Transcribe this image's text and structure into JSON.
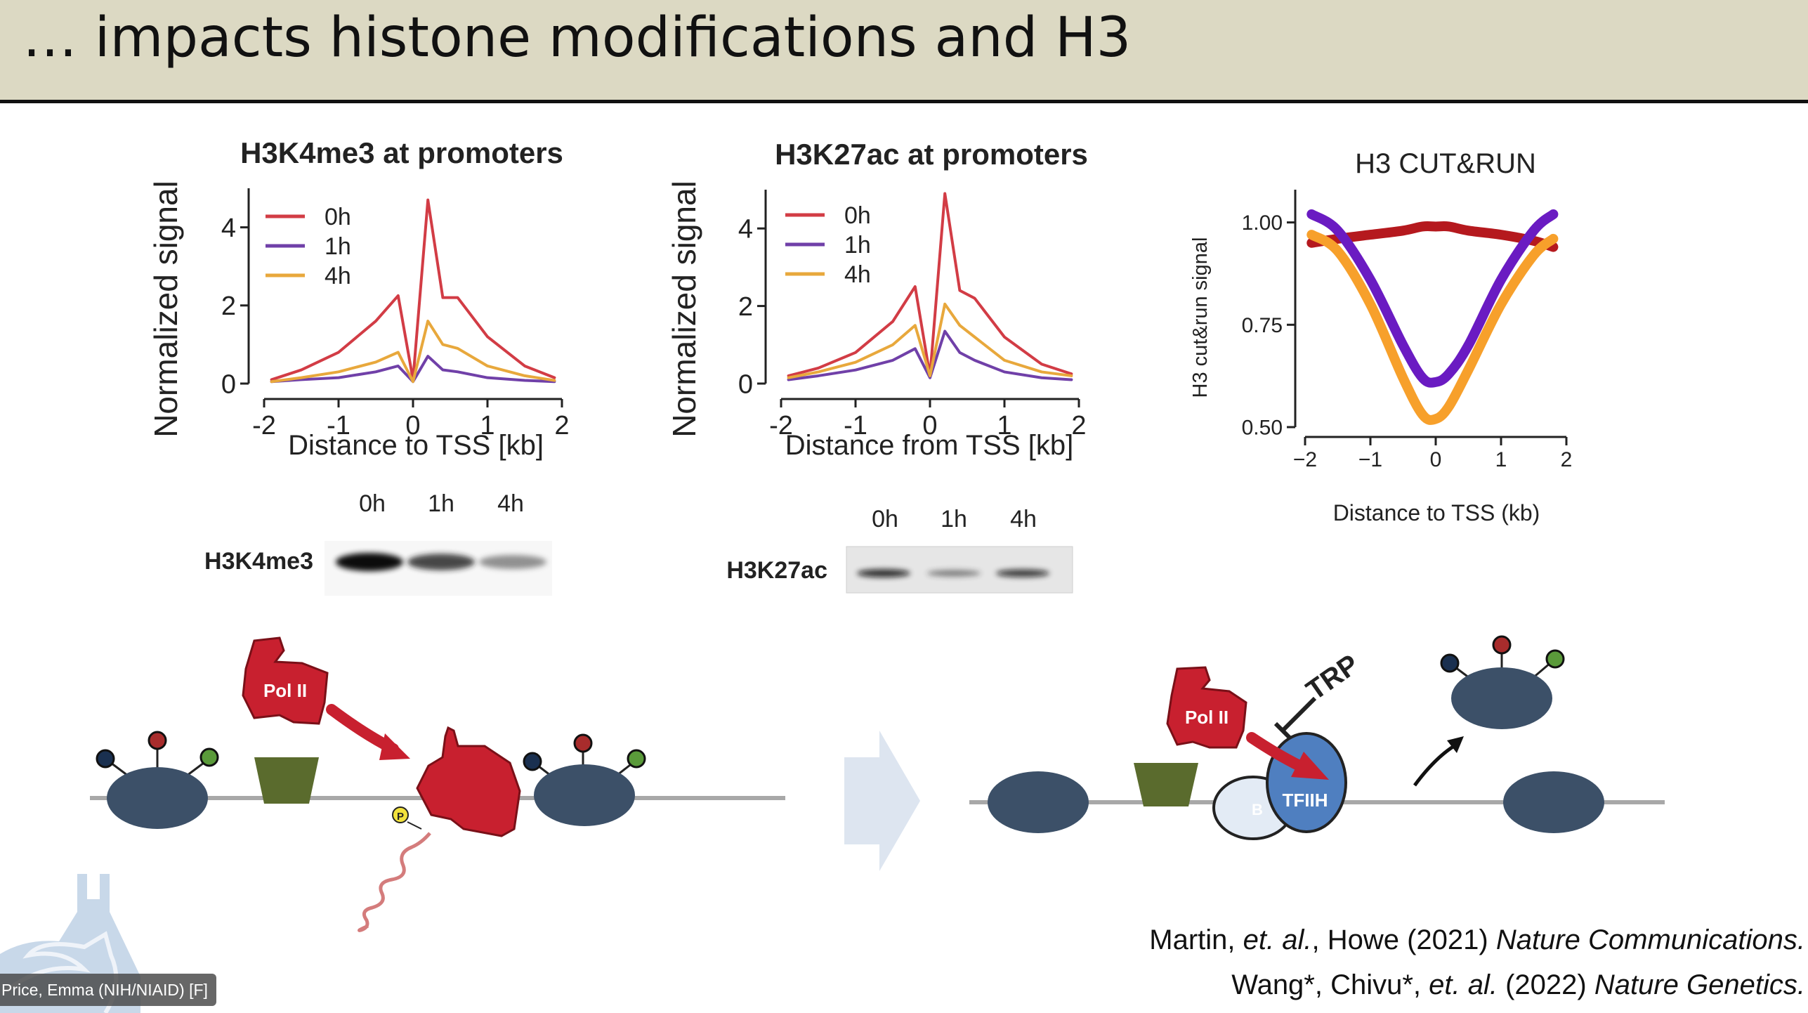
{
  "slide": {
    "title": "… impacts histone modifications and H3"
  },
  "chart_data": [
    {
      "type": "line",
      "title": "H3K4me3 at promoters",
      "xlabel": "Distance to TSS [kb]",
      "ylabel": "Normalized signal",
      "xlim": [
        -2,
        2
      ],
      "ylim": [
        0,
        5
      ],
      "xticks": [
        "-2",
        "-1",
        "0",
        "1",
        "2"
      ],
      "yticks": [
        "0",
        "2",
        "4"
      ],
      "legend": "top-left",
      "x": [
        -1.9,
        -1.5,
        -1.0,
        -0.5,
        -0.2,
        0.0,
        0.2,
        0.4,
        0.6,
        1.0,
        1.5,
        1.9
      ],
      "series": [
        {
          "name": "0h",
          "color": "#d23c45",
          "values": [
            0.1,
            0.35,
            0.8,
            1.6,
            2.25,
            0.1,
            4.7,
            2.2,
            2.2,
            1.2,
            0.45,
            0.15
          ]
        },
        {
          "name": "1h",
          "color": "#7040a8",
          "values": [
            0.05,
            0.1,
            0.15,
            0.3,
            0.45,
            0.05,
            0.7,
            0.35,
            0.3,
            0.15,
            0.08,
            0.05
          ]
        },
        {
          "name": "4h",
          "color": "#e8a83c",
          "values": [
            0.05,
            0.15,
            0.3,
            0.55,
            0.8,
            0.05,
            1.6,
            1.0,
            0.9,
            0.45,
            0.2,
            0.08
          ]
        }
      ]
    },
    {
      "type": "line",
      "title": "H3K27ac at promoters",
      "xlabel": "Distance from TSS [kb]",
      "ylabel": "Normalized signal",
      "xlim": [
        -2,
        2
      ],
      "ylim": [
        0,
        5
      ],
      "xticks": [
        "-2",
        "-1",
        "0",
        "1",
        "2"
      ],
      "yticks": [
        "0",
        "2",
        "4"
      ],
      "legend": "top-left",
      "x": [
        -1.9,
        -1.5,
        -1.0,
        -0.5,
        -0.2,
        0.0,
        0.2,
        0.4,
        0.6,
        1.0,
        1.5,
        1.9
      ],
      "series": [
        {
          "name": "0h",
          "color": "#d23c45",
          "values": [
            0.2,
            0.4,
            0.8,
            1.6,
            2.5,
            0.2,
            4.9,
            2.4,
            2.2,
            1.2,
            0.5,
            0.25
          ]
        },
        {
          "name": "1h",
          "color": "#7040a8",
          "values": [
            0.1,
            0.2,
            0.35,
            0.6,
            0.9,
            0.15,
            1.35,
            0.8,
            0.6,
            0.3,
            0.15,
            0.1
          ]
        },
        {
          "name": "4h",
          "color": "#e8a83c",
          "values": [
            0.15,
            0.3,
            0.55,
            1.0,
            1.5,
            0.2,
            2.05,
            1.5,
            1.2,
            0.6,
            0.3,
            0.2
          ]
        }
      ]
    },
    {
      "type": "line",
      "title": "H3 CUT&RUN",
      "xlabel": "Distance to TSS (kb)",
      "ylabel": "H3 cut&run signal",
      "xlim": [
        -2,
        2
      ],
      "ylim": [
        0.5,
        1.08
      ],
      "xticks": [
        "−2",
        "−1",
        "0",
        "1",
        "2"
      ],
      "yticks": [
        "0.50",
        "0.75",
        "1.00"
      ],
      "x": [
        -1.9,
        -1.5,
        -1.0,
        -0.5,
        -0.2,
        0.0,
        0.2,
        0.5,
        1.0,
        1.5,
        1.8
      ],
      "series": [
        {
          "color": "#b5191e",
          "values": [
            0.95,
            0.96,
            0.97,
            0.98,
            0.99,
            0.99,
            0.99,
            0.98,
            0.97,
            0.955,
            0.94
          ]
        },
        {
          "color": "#6a1bc2",
          "values": [
            1.02,
            0.98,
            0.86,
            0.7,
            0.62,
            0.61,
            0.63,
            0.7,
            0.86,
            0.98,
            1.02
          ]
        },
        {
          "color": "#f7a02b",
          "values": [
            0.97,
            0.93,
            0.8,
            0.62,
            0.53,
            0.52,
            0.55,
            0.64,
            0.8,
            0.92,
            0.96
          ]
        }
      ]
    }
  ],
  "blots": {
    "h3k4me3": {
      "label": "H3K4me3",
      "lanes": [
        "0h",
        "1h",
        "4h"
      ],
      "intensity": [
        1.0,
        0.75,
        0.4
      ]
    },
    "h3k27ac": {
      "label": "H3K27ac",
      "lanes": [
        "0h",
        "1h",
        "4h"
      ],
      "intensity": [
        0.85,
        0.35,
        0.75
      ]
    }
  },
  "diagram": {
    "left_pol": "Pol II",
    "right_pol": "Pol II",
    "phospho": "P",
    "trp": "TRP",
    "tfiih": "TFIIH",
    "b_factor": "B"
  },
  "citations": {
    "c1_authors": "Martin, ",
    "c1_etal": "et. al.",
    "c1_rest": ", Howe (2021) ",
    "c1_journal": "Nature Communications.",
    "c2_authors": "Wang*, Chivu*, ",
    "c2_etal": "et. al.",
    "c2_rest": " (2022) ",
    "c2_journal": "Nature Genetics."
  },
  "participant": {
    "name": "Price, Emma (NIH/NIAID) [F]"
  },
  "colors": {
    "title_bar": "#dcd9c3",
    "nucleosome": "#3c5068",
    "pol2": "#c8202f",
    "tata": "#5a6b2d",
    "tfiih": "#4f7fc0"
  }
}
